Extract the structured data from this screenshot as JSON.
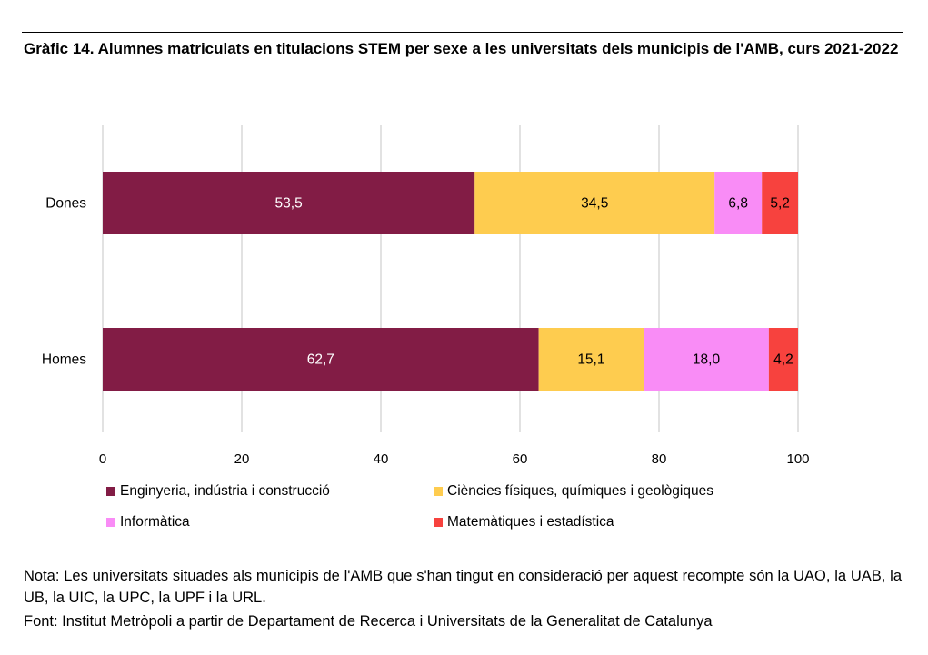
{
  "title": "Gràfic 14. Alumnes matriculats en titulacions STEM per sexe a les universitats dels municipis de l'AMB, curs 2021-2022",
  "note": "Nota: Les universitats situades als municipis de l'AMB que s'han tingut en consideració per aquest recompte són la UAO, la UAB, la UB, la UIC, la UPC, la UPF i la URL.",
  "source": "Font: Institut Metròpoli a partir de Departament de Recerca i Universitats de la Generalitat de Catalunya",
  "chart_data": {
    "type": "bar",
    "orientation": "horizontal",
    "stacked": true,
    "categories": [
      "Dones",
      "Homes"
    ],
    "series": [
      {
        "name": "Enginyeria, indústria i construcció",
        "color": "#821c45",
        "values": [
          53.5,
          62.7
        ],
        "labels": [
          "53,5",
          "62,7"
        ],
        "label_color": "#ffffff"
      },
      {
        "name": "Ciències físiques, químiques i geològiques",
        "color": "#fecc4f",
        "values": [
          34.5,
          15.1
        ],
        "labels": [
          "34,5",
          "15,1"
        ],
        "label_color": "#000000"
      },
      {
        "name": "Informàtica",
        "color": "#f98cf6",
        "values": [
          6.8,
          18.0
        ],
        "labels": [
          "6,8",
          "18,0"
        ],
        "label_color": "#000000"
      },
      {
        "name": "Matemàtiques i estadística",
        "color": "#f7423e",
        "values": [
          5.2,
          4.2
        ],
        "labels": [
          "5,2",
          "4,2"
        ],
        "label_color": "#000000"
      }
    ],
    "xlim": [
      0,
      100
    ],
    "xticks": [
      0,
      20,
      40,
      60,
      80,
      100
    ],
    "grid": true,
    "legend_position": "bottom"
  }
}
